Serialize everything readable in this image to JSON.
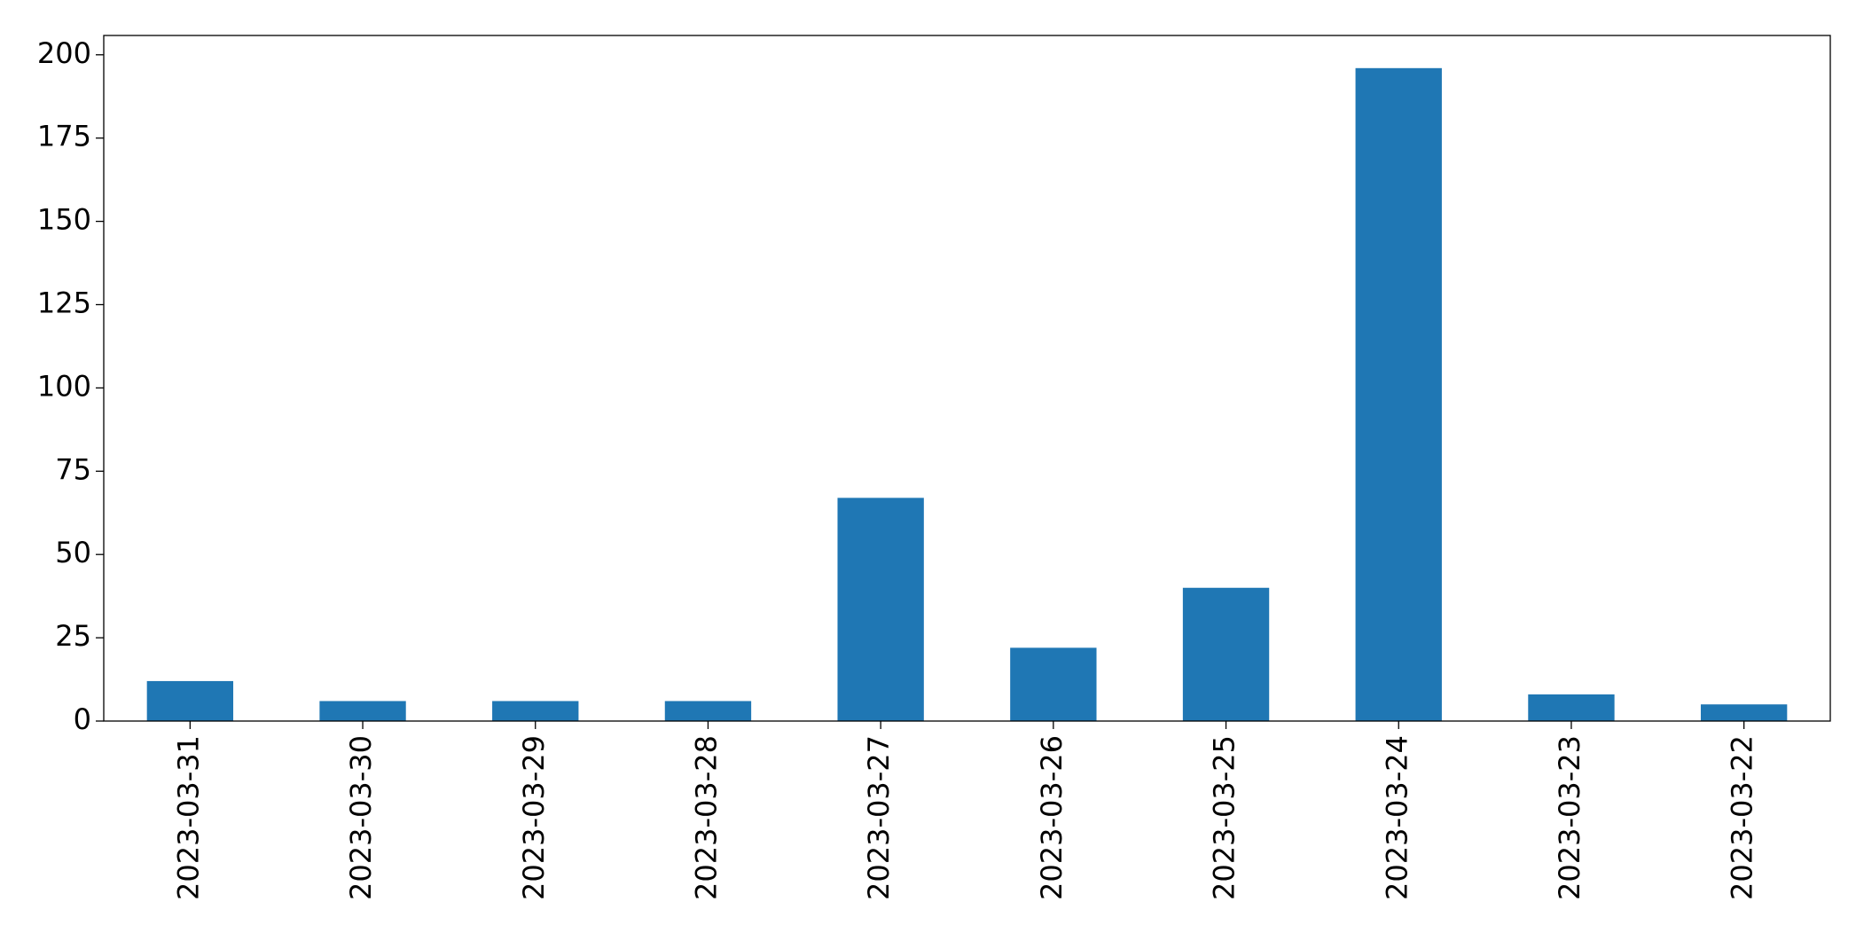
{
  "chart_data": {
    "type": "bar",
    "categories": [
      "2023-03-31",
      "2023-03-30",
      "2023-03-29",
      "2023-03-28",
      "2023-03-27",
      "2023-03-26",
      "2023-03-25",
      "2023-03-24",
      "2023-03-23",
      "2023-03-22"
    ],
    "values": [
      12,
      6,
      6,
      6,
      67,
      22,
      40,
      196,
      8,
      5
    ],
    "color": "#1f77b4",
    "ylim": [
      0,
      205.8
    ],
    "yticks": [
      0,
      25,
      50,
      75,
      100,
      125,
      150,
      175,
      200
    ],
    "grid": false
  }
}
